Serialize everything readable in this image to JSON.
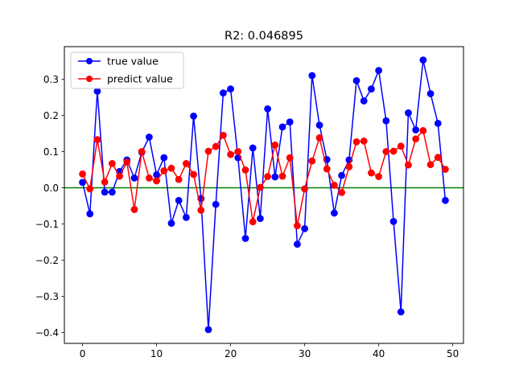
{
  "chart_data": {
    "type": "line",
    "title": "R2: 0.046895",
    "xlabel": "",
    "ylabel": "",
    "xlim": [
      -2.45,
      51.45
    ],
    "ylim": [
      -0.43,
      0.39
    ],
    "xticks": [
      0,
      10,
      20,
      30,
      40,
      50
    ],
    "xtick_labels": [
      "0",
      "10",
      "20",
      "30",
      "40",
      "50"
    ],
    "yticks": [
      -0.4,
      -0.3,
      -0.2,
      -0.1,
      0.0,
      0.1,
      0.2,
      0.3
    ],
    "ytick_labels": [
      "−0.4",
      "−0.3",
      "−0.2",
      "−0.1",
      "0.0",
      "0.1",
      "0.2",
      "0.3"
    ],
    "grid": false,
    "legend_position": "top-left",
    "reference_line": {
      "y": 0.0,
      "color": "#008000"
    },
    "x": [
      0,
      1,
      2,
      3,
      4,
      5,
      6,
      7,
      8,
      9,
      10,
      11,
      12,
      13,
      14,
      15,
      16,
      17,
      18,
      19,
      20,
      21,
      22,
      23,
      24,
      25,
      26,
      27,
      28,
      29,
      30,
      31,
      32,
      33,
      34,
      35,
      36,
      37,
      38,
      39,
      40,
      41,
      42,
      43,
      44,
      45,
      46,
      47,
      48,
      49
    ],
    "series": [
      {
        "name": "true value",
        "color": "#0000ff",
        "values": [
          0.015,
          -0.072,
          0.267,
          -0.012,
          -0.012,
          0.045,
          0.077,
          0.027,
          0.098,
          0.14,
          0.036,
          0.083,
          -0.098,
          -0.035,
          -0.082,
          0.198,
          -0.03,
          -0.392,
          -0.046,
          0.262,
          0.273,
          0.083,
          -0.14,
          0.11,
          -0.085,
          0.218,
          0.03,
          0.168,
          0.182,
          -0.156,
          -0.113,
          0.31,
          0.173,
          0.078,
          -0.07,
          0.034,
          0.077,
          0.296,
          0.24,
          0.273,
          0.324,
          0.185,
          -0.093,
          -0.343,
          0.207,
          0.16,
          0.353,
          0.26,
          0.178,
          -0.035
        ]
      },
      {
        "name": "predict value",
        "color": "#ff0000",
        "values": [
          0.038,
          -0.003,
          0.133,
          0.016,
          0.067,
          0.032,
          0.071,
          -0.06,
          0.1,
          0.027,
          0.019,
          0.047,
          0.054,
          0.023,
          0.067,
          0.037,
          -0.062,
          0.101,
          0.114,
          0.145,
          0.092,
          0.1,
          0.049,
          -0.094,
          0.001,
          0.031,
          0.118,
          0.032,
          0.083,
          -0.105,
          -0.003,
          0.074,
          0.138,
          0.052,
          0.007,
          -0.013,
          0.058,
          0.127,
          0.129,
          0.041,
          0.031,
          0.1,
          0.101,
          0.115,
          0.063,
          0.135,
          0.158,
          0.064,
          0.084,
          0.051
        ]
      }
    ]
  }
}
